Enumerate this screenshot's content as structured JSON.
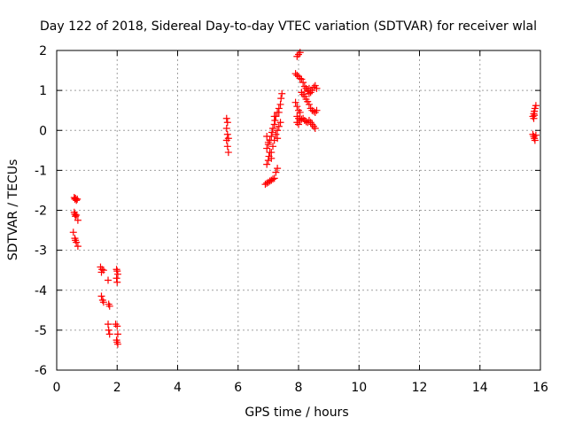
{
  "chart_data": {
    "type": "scatter",
    "title": "Day 122 of 2018, Sidereal Day-to-day VTEC variation (SDTVAR) for receiver wlal",
    "xlabel": "GPS time / hours",
    "ylabel": "SDTVAR / TECUs",
    "xlim": [
      0,
      16
    ],
    "ylim": [
      -6,
      2
    ],
    "xticks": [
      0,
      2,
      4,
      6,
      8,
      10,
      12,
      14,
      16
    ],
    "yticks": [
      -6,
      -5,
      -4,
      -3,
      -2,
      -1,
      0,
      1,
      2
    ],
    "grid": true,
    "marker": "plus",
    "color": "#ff0000",
    "series": [
      {
        "name": "SDTVAR",
        "points": [
          [
            0.58,
            -1.68
          ],
          [
            0.6,
            -1.72
          ],
          [
            0.62,
            -1.7
          ],
          [
            0.65,
            -1.75
          ],
          [
            0.68,
            -1.72
          ],
          [
            0.58,
            -2.05
          ],
          [
            0.6,
            -2.1
          ],
          [
            0.62,
            -2.15
          ],
          [
            0.65,
            -2.12
          ],
          [
            0.7,
            -2.25
          ],
          [
            0.55,
            -2.55
          ],
          [
            0.6,
            -2.7
          ],
          [
            0.62,
            -2.75
          ],
          [
            0.65,
            -2.8
          ],
          [
            0.7,
            -2.9
          ],
          [
            1.45,
            -3.42
          ],
          [
            1.5,
            -3.48
          ],
          [
            1.55,
            -3.5
          ],
          [
            1.48,
            -3.55
          ],
          [
            1.48,
            -4.15
          ],
          [
            1.52,
            -4.25
          ],
          [
            1.55,
            -4.3
          ],
          [
            1.7,
            -3.75
          ],
          [
            1.72,
            -4.35
          ],
          [
            1.75,
            -4.4
          ],
          [
            1.7,
            -4.85
          ],
          [
            1.72,
            -5.0
          ],
          [
            1.75,
            -5.1
          ],
          [
            1.98,
            -3.48
          ],
          [
            2.0,
            -3.52
          ],
          [
            2.02,
            -3.6
          ],
          [
            1.98,
            -3.7
          ],
          [
            2.0,
            -3.8
          ],
          [
            1.95,
            -4.85
          ],
          [
            2.0,
            -4.9
          ],
          [
            2.02,
            -5.1
          ],
          [
            1.98,
            -5.25
          ],
          [
            2.0,
            -5.3
          ],
          [
            2.02,
            -5.35
          ],
          [
            5.62,
            0.3
          ],
          [
            5.65,
            0.2
          ],
          [
            5.62,
            0.05
          ],
          [
            5.65,
            -0.1
          ],
          [
            5.68,
            -0.2
          ],
          [
            5.62,
            -0.25
          ],
          [
            5.65,
            -0.4
          ],
          [
            5.68,
            -0.55
          ],
          [
            6.9,
            -1.35
          ],
          [
            6.95,
            -1.32
          ],
          [
            7.0,
            -1.3
          ],
          [
            7.05,
            -1.27
          ],
          [
            7.1,
            -1.25
          ],
          [
            7.15,
            -1.22
          ],
          [
            7.2,
            -1.2
          ],
          [
            7.25,
            -1.05
          ],
          [
            7.3,
            -0.95
          ],
          [
            6.95,
            -0.85
          ],
          [
            7.0,
            -0.75
          ],
          [
            7.02,
            -0.65
          ],
          [
            7.05,
            -0.55
          ],
          [
            6.95,
            -0.45
          ],
          [
            7.0,
            -0.35
          ],
          [
            7.05,
            -0.25
          ],
          [
            7.1,
            -0.15
          ],
          [
            7.12,
            -0.05
          ],
          [
            6.95,
            -0.15
          ],
          [
            7.0,
            -0.3
          ],
          [
            7.15,
            0.05
          ],
          [
            7.2,
            0.15
          ],
          [
            7.22,
            0.25
          ],
          [
            7.25,
            0.35
          ],
          [
            7.3,
            0.45
          ],
          [
            7.35,
            0.55
          ],
          [
            7.4,
            0.65
          ],
          [
            7.42,
            0.8
          ],
          [
            7.45,
            0.92
          ],
          [
            7.1,
            -0.55
          ],
          [
            7.15,
            -0.4
          ],
          [
            7.2,
            -0.25
          ],
          [
            7.25,
            -0.1
          ],
          [
            7.3,
            0.0
          ],
          [
            7.35,
            0.1
          ],
          [
            7.4,
            0.2
          ],
          [
            7.3,
            -0.2
          ],
          [
            7.2,
            0.35
          ],
          [
            7.35,
            0.45
          ],
          [
            7.1,
            -0.7
          ],
          [
            7.95,
            1.85
          ],
          [
            8.0,
            1.9
          ],
          [
            8.05,
            1.95
          ],
          [
            7.9,
            1.42
          ],
          [
            7.95,
            1.38
          ],
          [
            8.0,
            1.35
          ],
          [
            8.05,
            1.3
          ],
          [
            8.1,
            1.28
          ],
          [
            8.15,
            1.2
          ],
          [
            8.2,
            1.1
          ],
          [
            8.25,
            1.05
          ],
          [
            8.3,
            0.98
          ],
          [
            8.35,
            0.92
          ],
          [
            8.1,
            0.95
          ],
          [
            8.15,
            0.9
          ],
          [
            8.2,
            0.85
          ],
          [
            8.25,
            0.78
          ],
          [
            8.3,
            0.72
          ],
          [
            8.35,
            0.65
          ],
          [
            8.4,
            0.55
          ],
          [
            8.45,
            0.5
          ],
          [
            8.5,
            0.48
          ],
          [
            8.55,
            0.45
          ],
          [
            8.6,
            0.5
          ],
          [
            8.3,
            1.0
          ],
          [
            8.35,
            1.05
          ],
          [
            8.4,
            0.95
          ],
          [
            8.45,
            1.0
          ],
          [
            8.5,
            1.08
          ],
          [
            8.55,
            1.12
          ],
          [
            8.6,
            1.05
          ],
          [
            7.95,
            0.35
          ],
          [
            8.0,
            0.3
          ],
          [
            8.05,
            0.25
          ],
          [
            8.1,
            0.28
          ],
          [
            8.15,
            0.3
          ],
          [
            8.2,
            0.25
          ],
          [
            8.25,
            0.22
          ],
          [
            8.3,
            0.2
          ],
          [
            8.35,
            0.25
          ],
          [
            8.4,
            0.2
          ],
          [
            8.45,
            0.15
          ],
          [
            8.5,
            0.1
          ],
          [
            8.55,
            0.05
          ],
          [
            7.9,
            0.7
          ],
          [
            7.95,
            0.6
          ],
          [
            8.0,
            0.5
          ],
          [
            8.05,
            0.45
          ],
          [
            7.95,
            0.2
          ],
          [
            8.0,
            0.15
          ],
          [
            15.75,
            0.35
          ],
          [
            15.78,
            0.42
          ],
          [
            15.8,
            0.48
          ],
          [
            15.82,
            0.55
          ],
          [
            15.85,
            0.62
          ],
          [
            15.78,
            0.3
          ],
          [
            15.8,
            0.38
          ],
          [
            15.75,
            -0.1
          ],
          [
            15.78,
            -0.15
          ],
          [
            15.8,
            -0.2
          ],
          [
            15.82,
            -0.25
          ],
          [
            15.85,
            -0.12
          ]
        ]
      }
    ]
  }
}
